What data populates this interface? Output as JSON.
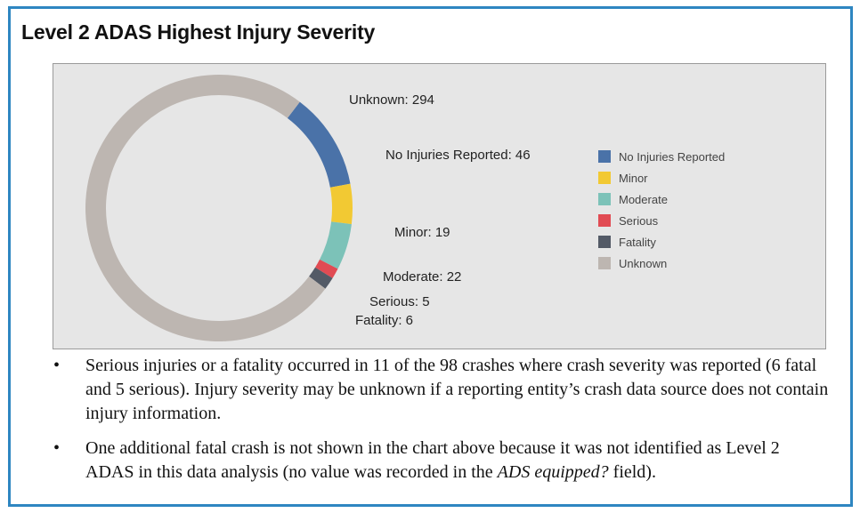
{
  "figure": {
    "title": "Level 2 ADAS Highest Injury Severity"
  },
  "chart_data": {
    "type": "pie",
    "style": "donut",
    "categories": [
      "No Injuries Reported",
      "Minor",
      "Moderate",
      "Serious",
      "Fatality",
      "Unknown"
    ],
    "values": [
      46,
      19,
      22,
      5,
      6,
      294
    ],
    "slice_labels": [
      "No Injuries Reported: 46",
      "Minor: 19",
      "Moderate: 22",
      "Serious: 5",
      "Fatality: 6",
      "Unknown: 294"
    ],
    "colors": [
      "#4a72a8",
      "#f2c933",
      "#7cc2b8",
      "#e14b53",
      "#535a66",
      "#bdb6b1"
    ],
    "legend": {
      "position": "right",
      "entries": [
        "No Injuries Reported",
        "Minor",
        "Moderate",
        "Serious",
        "Fatality",
        "Unknown"
      ]
    }
  },
  "notes": [
    {
      "bullet": "•",
      "text": "Serious injuries or a fatality occurred in 11 of the 98 crashes where crash severity was reported (6 fatal and 5 serious). Injury severity may be unknown if a reporting entity’s crash data source does not contain injury information."
    },
    {
      "bullet": "•",
      "text_before": "One additional fatal crash is not shown in the chart above because it was not identified as Level 2 ADAS in this data analysis (no value was recorded in the ",
      "text_emphasis": "ADS equipped?",
      "text_after": " field)."
    }
  ]
}
